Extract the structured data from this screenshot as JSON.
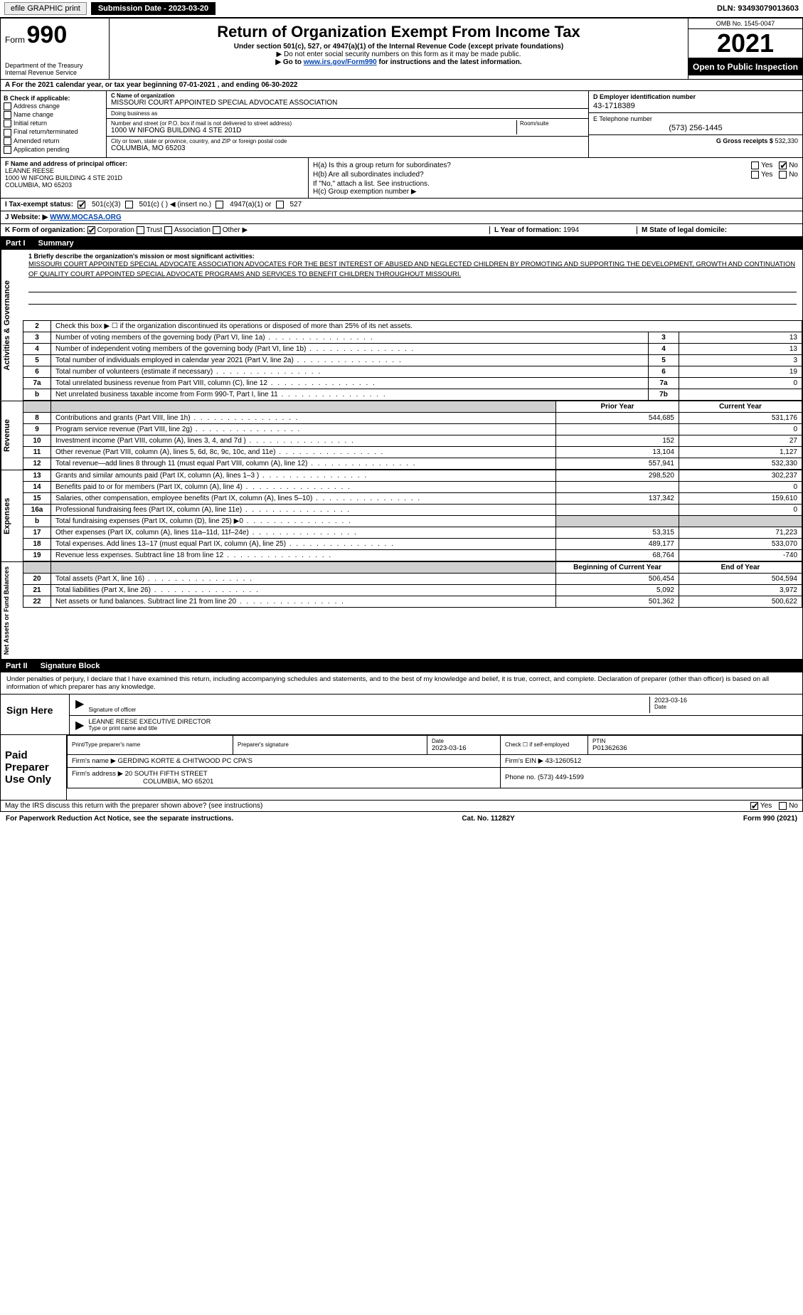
{
  "topbar": {
    "efile": "efile GRAPHIC print",
    "submission_label": "Submission Date - 2023-03-20",
    "dln_label": "DLN: 93493079013603"
  },
  "header": {
    "form_word": "Form",
    "form_num": "990",
    "dept1": "Department of the Treasury",
    "dept2": "Internal Revenue Service",
    "title": "Return of Organization Exempt From Income Tax",
    "subtitle": "Under section 501(c), 527, or 4947(a)(1) of the Internal Revenue Code (except private foundations)",
    "arrow1": "▶ Do not enter social security numbers on this form as it may be made public.",
    "arrow2_pre": "▶ Go to ",
    "arrow2_link": "www.irs.gov/Form990",
    "arrow2_post": " for instructions and the latest information.",
    "omb": "OMB No. 1545-0047",
    "year": "2021",
    "open": "Open to Public Inspection"
  },
  "row_a": "A For the 2021 calendar year, or tax year beginning 07-01-2021    , and ending 06-30-2022",
  "col_b": {
    "hdr": "B Check if applicable:",
    "items": [
      "Address change",
      "Name change",
      "Initial return",
      "Final return/terminated",
      "Amended return",
      "Application pending"
    ]
  },
  "col_c": {
    "name_lbl": "C Name of organization",
    "name": "MISSOURI COURT APPOINTED SPECIAL ADVOCATE ASSOCIATION",
    "dba_lbl": "Doing business as",
    "dba": "",
    "addr_lbl": "Number and street (or P.O. box if mail is not delivered to street address)",
    "room_lbl": "Room/suite",
    "addr": "1000 W NIFONG BUILDING 4 STE 201D",
    "city_lbl": "City or town, state or province, country, and ZIP or foreign postal code",
    "city": "COLUMBIA, MO  65203"
  },
  "col_de": {
    "d_lbl": "D Employer identification number",
    "d_val": "43-1718389",
    "e_lbl": "E Telephone number",
    "e_val": "(573) 256-1445",
    "g_lbl": "G Gross receipts $",
    "g_val": "532,330"
  },
  "row_f": {
    "lbl": "F Name and address of principal officer:",
    "name": "LEANNE REESE",
    "addr1": "1000 W NIFONG BUILDING 4 STE 201D",
    "addr2": "COLUMBIA, MO  65203"
  },
  "row_h": {
    "ha": "H(a)  Is this a group return for subordinates?",
    "hb": "H(b)  Are all subordinates included?",
    "hb2": "If \"No,\" attach a list. See instructions.",
    "hc": "H(c)  Group exemption number ▶",
    "yes": "Yes",
    "no": "No"
  },
  "row_i": {
    "lbl": "I    Tax-exempt status:",
    "o1": "501(c)(3)",
    "o2": "501(c) (   ) ◀ (insert no.)",
    "o3": "4947(a)(1) or",
    "o4": "527"
  },
  "row_j": {
    "lbl": "J    Website: ▶ ",
    "val": "WWW.MOCASA.ORG"
  },
  "row_k": {
    "lbl": "K Form of organization:",
    "opts": [
      "Corporation",
      "Trust",
      "Association",
      "Other ▶"
    ],
    "l_lbl": "L Year of formation:",
    "l_val": "1994",
    "m_lbl": "M State of legal domicile:",
    "m_val": ""
  },
  "part1": {
    "num": "Part I",
    "title": "Summary"
  },
  "vtabs": {
    "gov": "Activities & Governance",
    "rev": "Revenue",
    "exp": "Expenses",
    "net": "Net Assets or Fund Balances"
  },
  "mission": {
    "lbl": "1   Briefly describe the organization's mission or most significant activities:",
    "txt": "MISSOURI COURT APPOINTED SPECIAL ADVOCATE ASSOCIATION ADVOCATES FOR THE BEST INTEREST OF ABUSED AND NEGLECTED CHILDREN BY PROMOTING AND SUPPORTING THE DEVELOPMENT, GROWTH AND CONTINUATION OF QUALITY COURT APPOINTED SPECIAL ADVOCATE PROGRAMS AND SERVICES TO BENEFIT CHILDREN THROUGHOUT MISSOURI."
  },
  "gov_rows": [
    {
      "n": "2",
      "d": "Check this box ▶ ☐  if the organization discontinued its operations or disposed of more than 25% of its net assets."
    },
    {
      "n": "3",
      "d": "Number of voting members of the governing body (Part VI, line 1a)",
      "b": "3",
      "v": "13"
    },
    {
      "n": "4",
      "d": "Number of independent voting members of the governing body (Part VI, line 1b)",
      "b": "4",
      "v": "13"
    },
    {
      "n": "5",
      "d": "Total number of individuals employed in calendar year 2021 (Part V, line 2a)",
      "b": "5",
      "v": "3"
    },
    {
      "n": "6",
      "d": "Total number of volunteers (estimate if necessary)",
      "b": "6",
      "v": "19"
    },
    {
      "n": "7a",
      "d": "Total unrelated business revenue from Part VIII, column (C), line 12",
      "b": "7a",
      "v": "0"
    },
    {
      "n": "b",
      "d": "Net unrelated business taxable income from Form 990-T, Part I, line 11",
      "b": "7b",
      "v": ""
    }
  ],
  "col_hdr": {
    "prior": "Prior Year",
    "current": "Current Year"
  },
  "rev_rows": [
    {
      "n": "8",
      "d": "Contributions and grants (Part VIII, line 1h)",
      "p": "544,685",
      "c": "531,176"
    },
    {
      "n": "9",
      "d": "Program service revenue (Part VIII, line 2g)",
      "p": "",
      "c": "0"
    },
    {
      "n": "10",
      "d": "Investment income (Part VIII, column (A), lines 3, 4, and 7d )",
      "p": "152",
      "c": "27"
    },
    {
      "n": "11",
      "d": "Other revenue (Part VIII, column (A), lines 5, 6d, 8c, 9c, 10c, and 11e)",
      "p": "13,104",
      "c": "1,127"
    },
    {
      "n": "12",
      "d": "Total revenue—add lines 8 through 11 (must equal Part VIII, column (A), line 12)",
      "p": "557,941",
      "c": "532,330"
    }
  ],
  "exp_rows": [
    {
      "n": "13",
      "d": "Grants and similar amounts paid (Part IX, column (A), lines 1–3 )",
      "p": "298,520",
      "c": "302,237"
    },
    {
      "n": "14",
      "d": "Benefits paid to or for members (Part IX, column (A), line 4)",
      "p": "",
      "c": "0"
    },
    {
      "n": "15",
      "d": "Salaries, other compensation, employee benefits (Part IX, column (A), lines 5–10)",
      "p": "137,342",
      "c": "159,610"
    },
    {
      "n": "16a",
      "d": "Professional fundraising fees (Part IX, column (A), line 11e)",
      "p": "",
      "c": "0"
    },
    {
      "n": "b",
      "d": "Total fundraising expenses (Part IX, column (D), line 25) ▶0",
      "p": "shade",
      "c": "shade"
    },
    {
      "n": "17",
      "d": "Other expenses (Part IX, column (A), lines 11a–11d, 11f–24e)",
      "p": "53,315",
      "c": "71,223"
    },
    {
      "n": "18",
      "d": "Total expenses. Add lines 13–17 (must equal Part IX, column (A), line 25)",
      "p": "489,177",
      "c": "533,070"
    },
    {
      "n": "19",
      "d": "Revenue less expenses. Subtract line 18 from line 12",
      "p": "68,764",
      "c": "-740"
    }
  ],
  "net_hdr": {
    "beg": "Beginning of Current Year",
    "end": "End of Year"
  },
  "net_rows": [
    {
      "n": "20",
      "d": "Total assets (Part X, line 16)",
      "p": "506,454",
      "c": "504,594"
    },
    {
      "n": "21",
      "d": "Total liabilities (Part X, line 26)",
      "p": "5,092",
      "c": "3,972"
    },
    {
      "n": "22",
      "d": "Net assets or fund balances. Subtract line 21 from line 20",
      "p": "501,362",
      "c": "500,622"
    }
  ],
  "part2": {
    "num": "Part II",
    "title": "Signature Block"
  },
  "penalty": "Under penalties of perjury, I declare that I have examined this return, including accompanying schedules and statements, and to the best of my knowledge and belief, it is true, correct, and complete. Declaration of preparer (other than officer) is based on all information of which preparer has any knowledge.",
  "sign": {
    "here": "Sign Here",
    "sig_lbl": "Signature of officer",
    "date": "2023-03-16",
    "date_lbl": "Date",
    "name": "LEANNE REESE  EXECUTIVE DIRECTOR",
    "name_lbl": "Type or print name and title"
  },
  "preparer": {
    "title": "Paid Preparer Use Only",
    "h1": "Print/Type preparer's name",
    "h2": "Preparer's signature",
    "h3": "Date",
    "h3v": "2023-03-16",
    "h4": "Check ☐ if self-employed",
    "h5": "PTIN",
    "h5v": "P01362636",
    "firm_lbl": "Firm's name    ▶",
    "firm": "GERDING KORTE & CHITWOOD PC CPA'S",
    "ein_lbl": "Firm's EIN ▶",
    "ein": "43-1260512",
    "addr_lbl": "Firm's address ▶",
    "addr1": "20 SOUTH FIFTH STREET",
    "addr2": "COLUMBIA, MO  65201",
    "phone_lbl": "Phone no.",
    "phone": "(573) 449-1599"
  },
  "discuss": {
    "q": "May the IRS discuss this return with the preparer shown above? (see instructions)",
    "yes": "Yes",
    "no": "No"
  },
  "footer": {
    "left": "For Paperwork Reduction Act Notice, see the separate instructions.",
    "mid": "Cat. No. 11282Y",
    "right": "Form 990 (2021)"
  }
}
